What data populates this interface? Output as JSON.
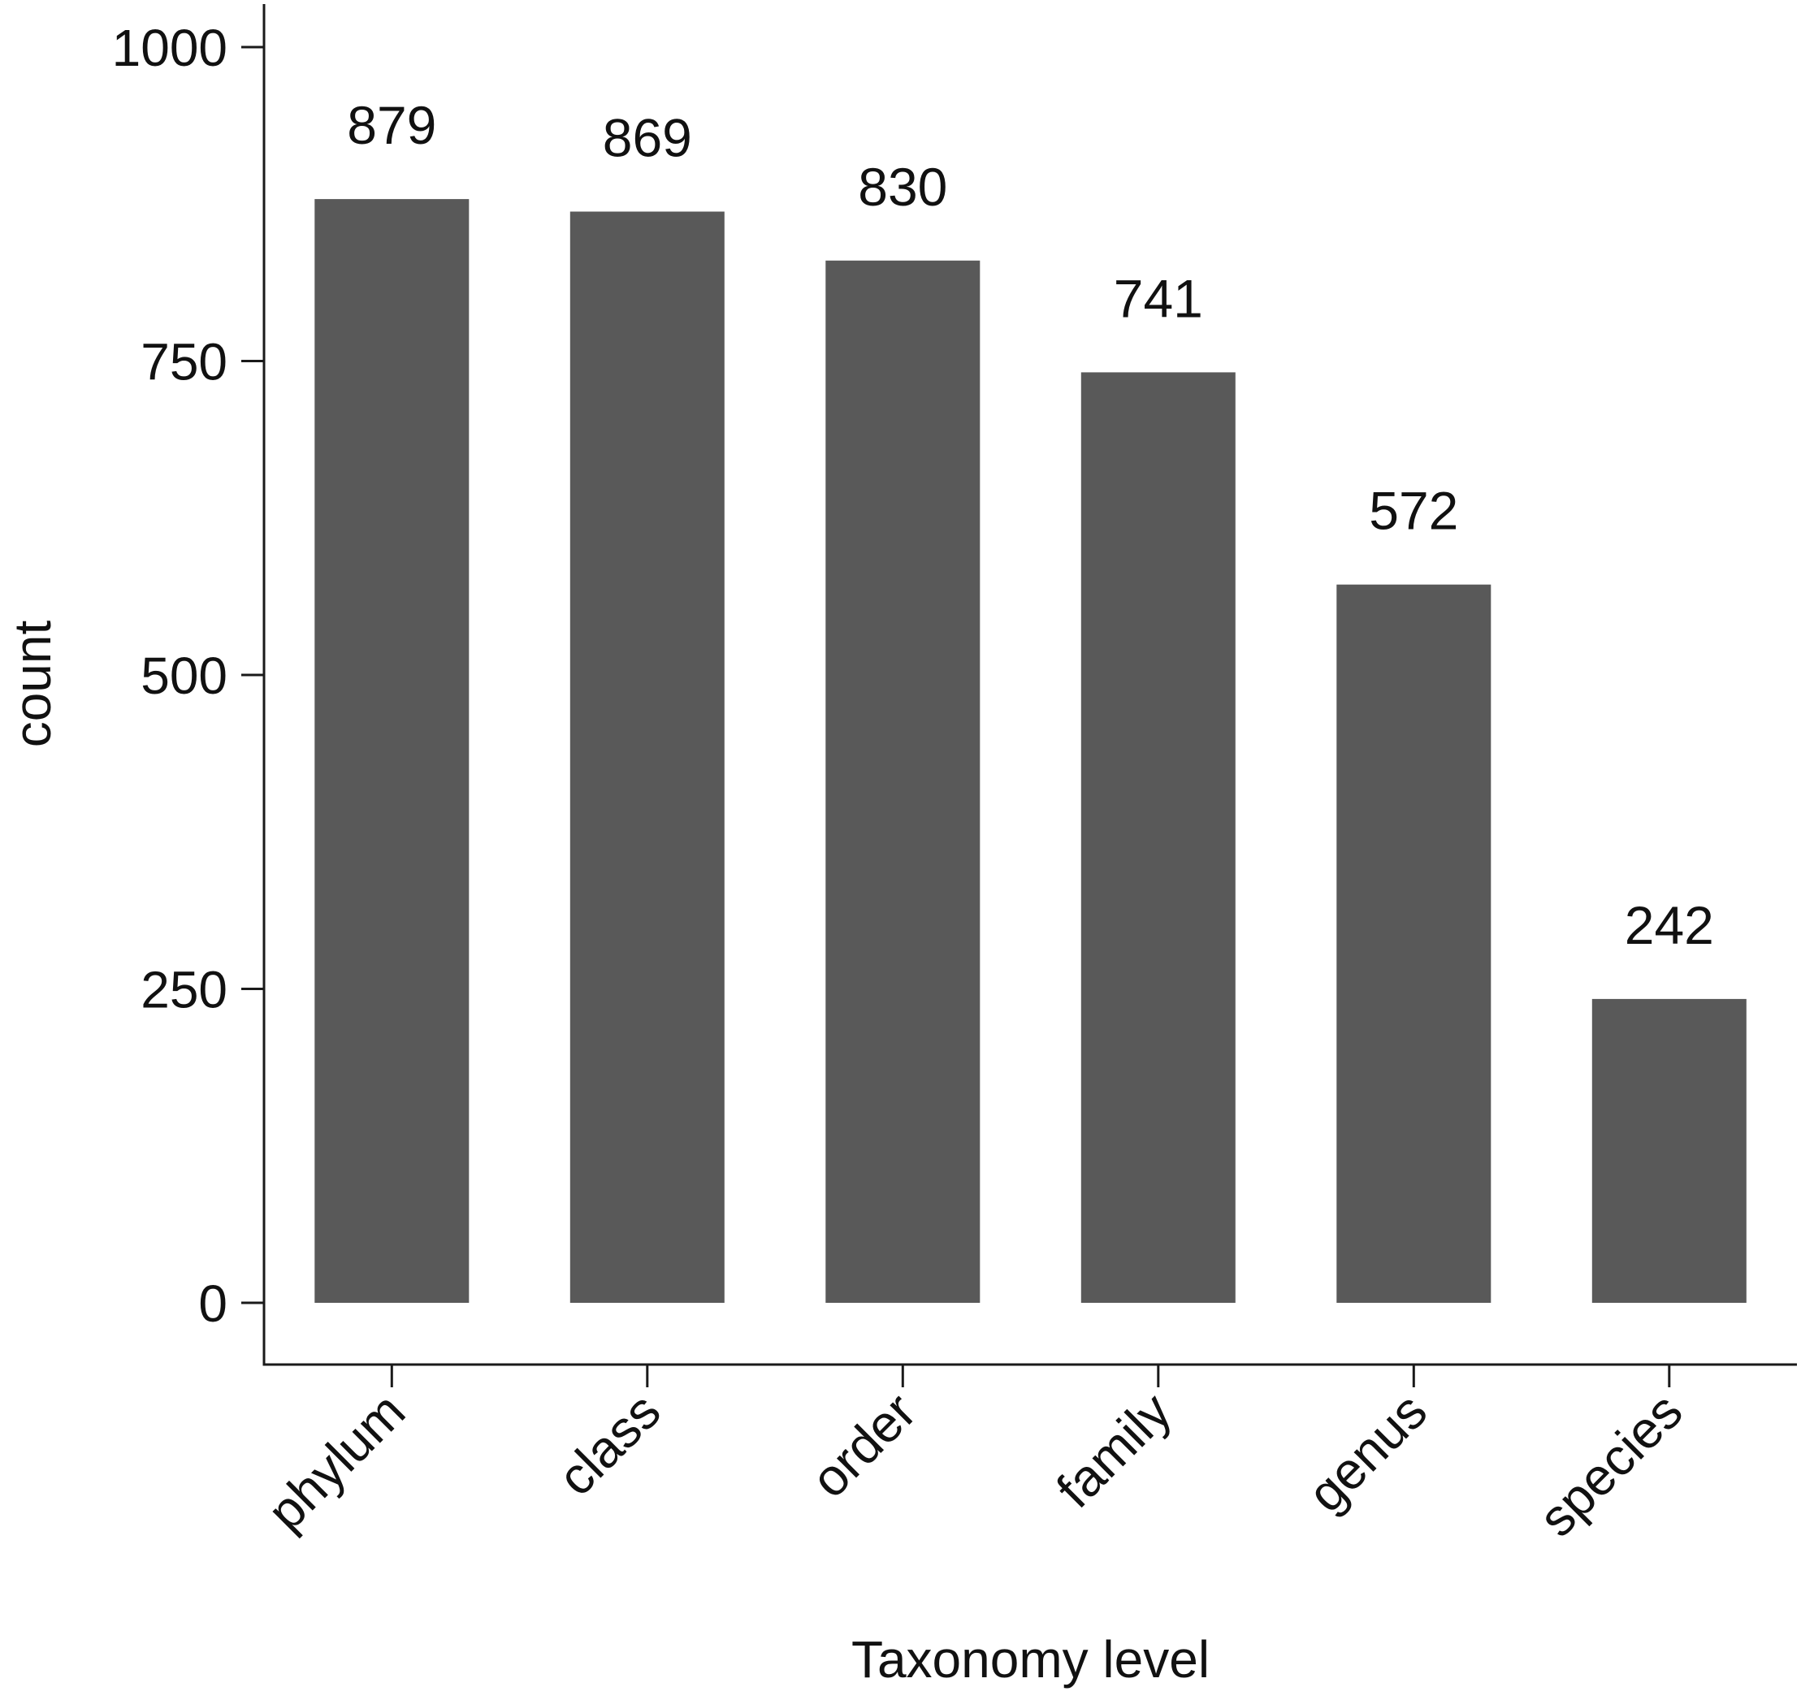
{
  "chart_data": {
    "type": "bar",
    "categories": [
      "phylum",
      "class",
      "order",
      "family",
      "genus",
      "species"
    ],
    "values": [
      879,
      869,
      830,
      741,
      572,
      242
    ],
    "data_labels": [
      "879",
      "869",
      "830",
      "741",
      "572",
      "242"
    ],
    "title": "",
    "xlabel": "Taxonomy level",
    "ylabel": "count",
    "ylim": [
      -50,
      1025
    ],
    "yticks": [
      0,
      250,
      500,
      750,
      1000
    ],
    "ytick_labels": [
      "0",
      "250",
      "500",
      "750",
      "1000"
    ],
    "grid": false,
    "legend": "none",
    "x_tick_label_rotation": "45 degrees",
    "colors": {
      "bar": "#595959",
      "axis": "#1a1a1a",
      "text": "#111111",
      "background": "#ffffff"
    }
  }
}
